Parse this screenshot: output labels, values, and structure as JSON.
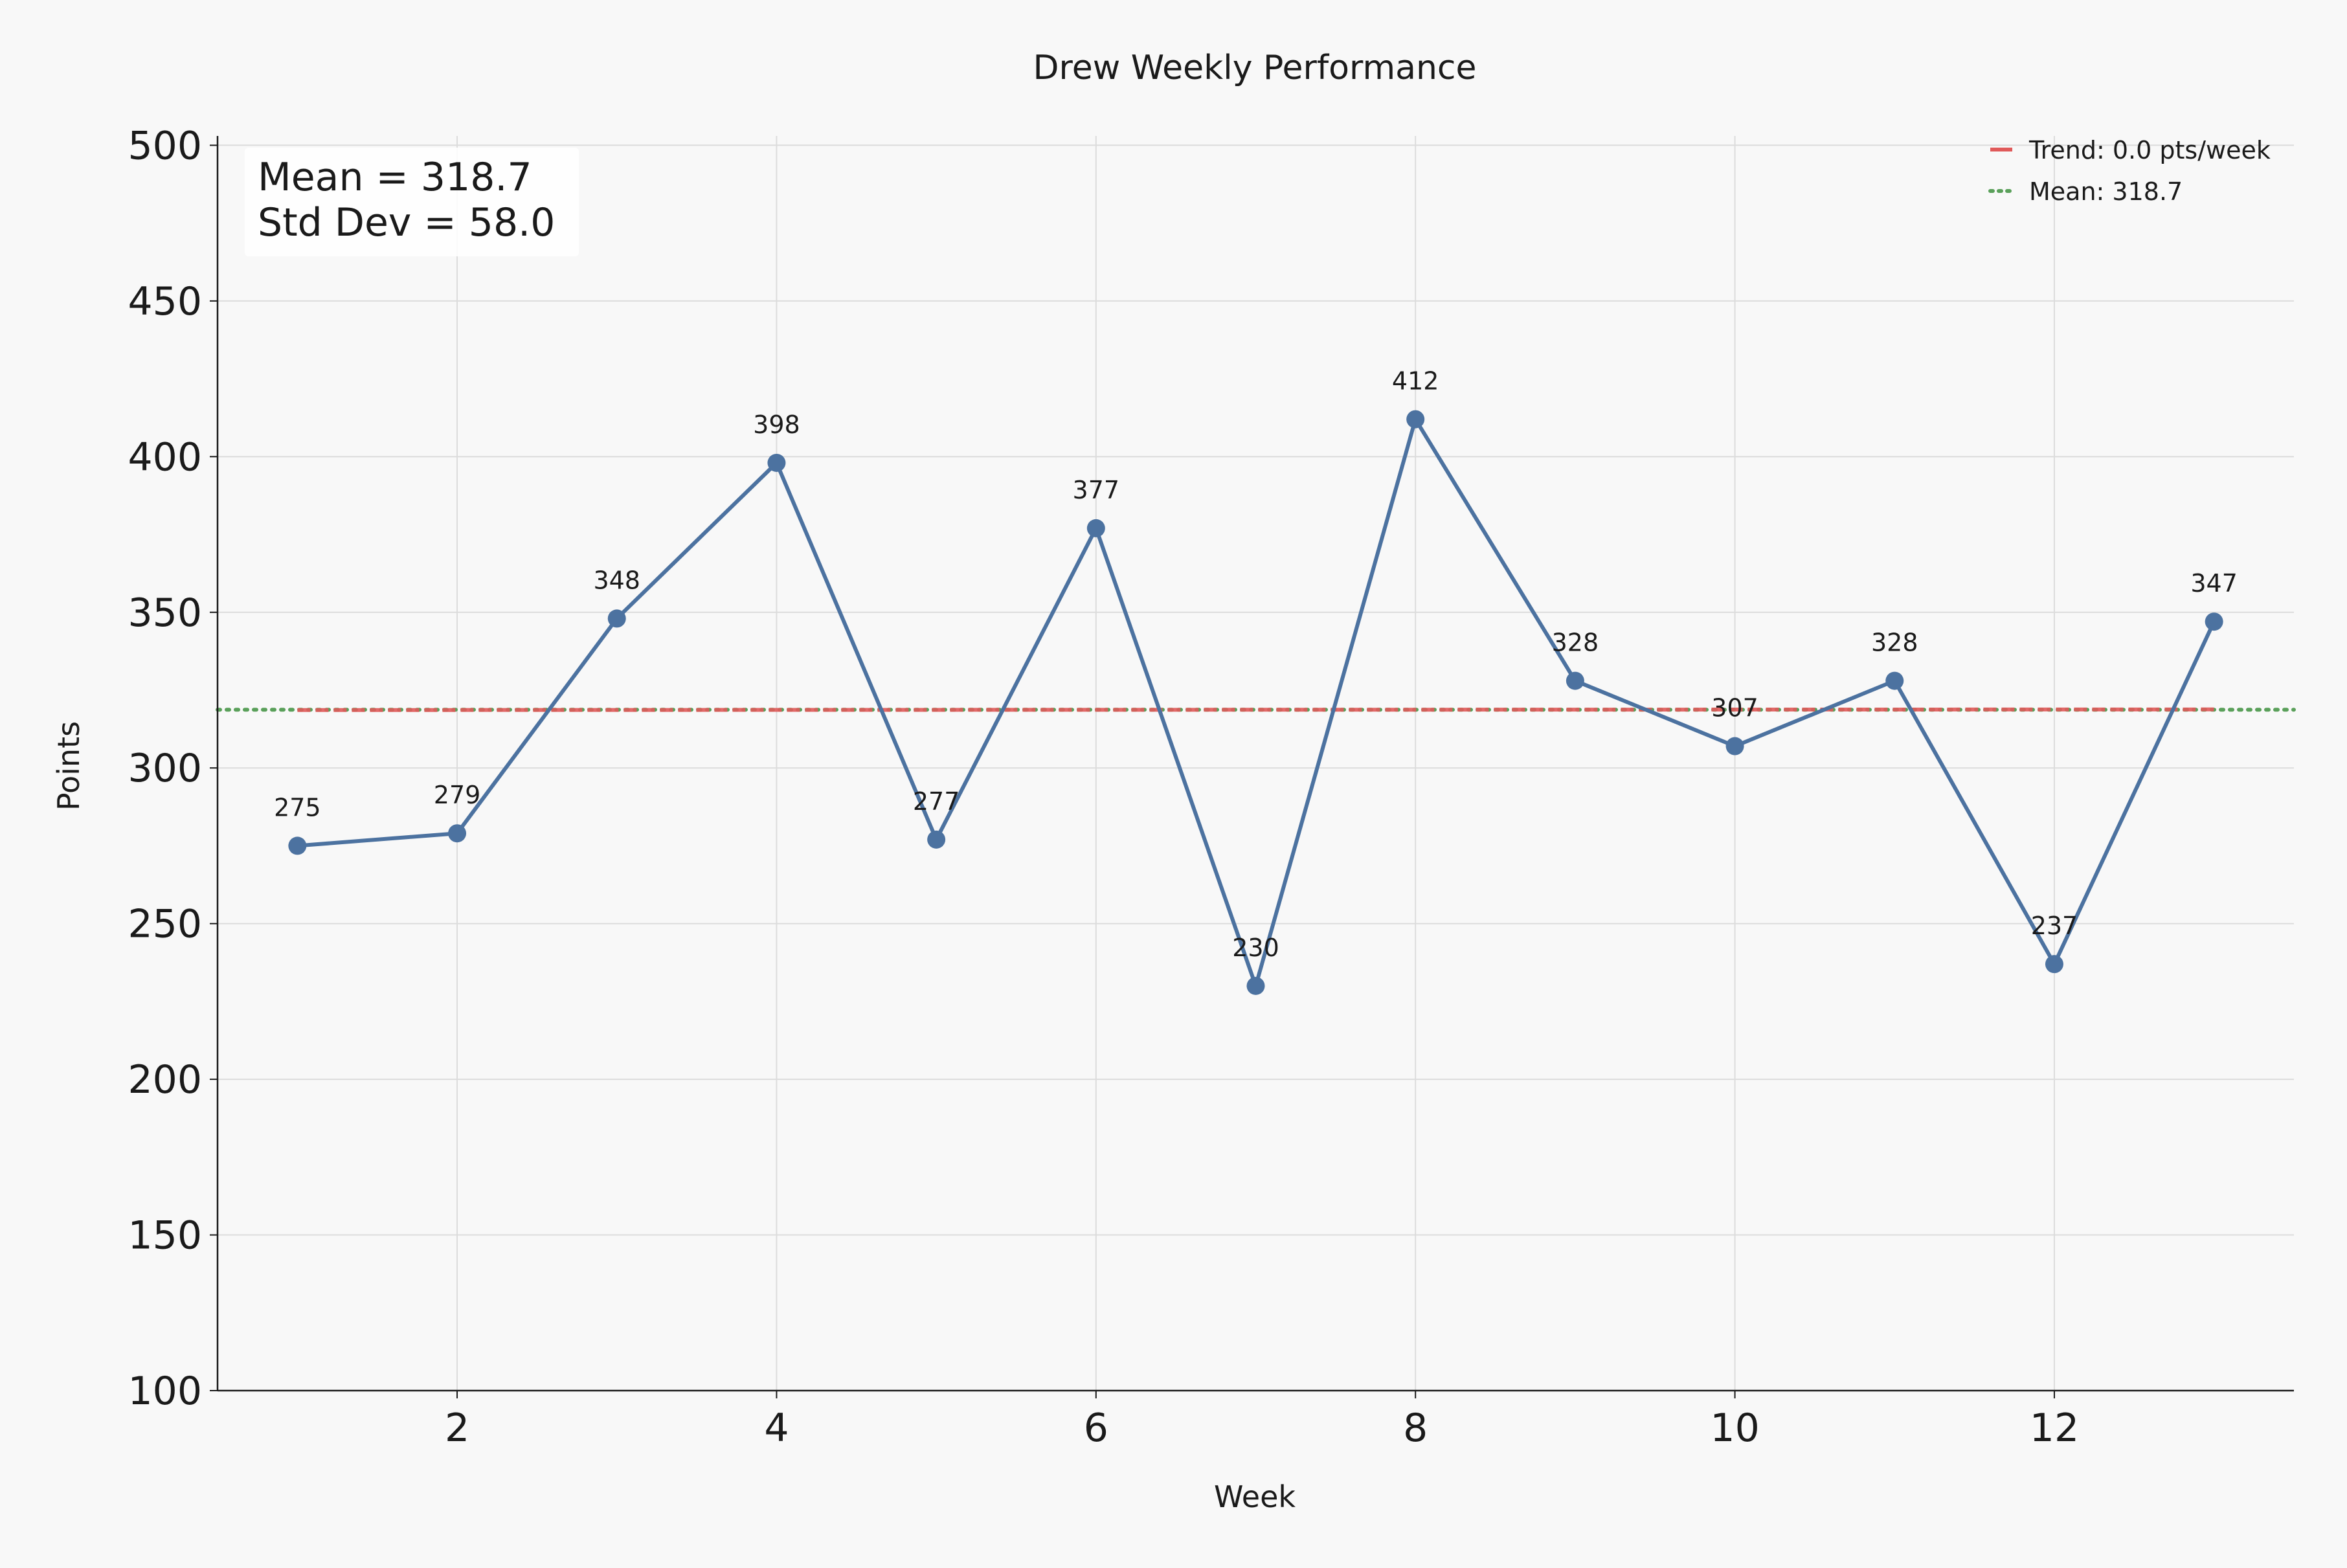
{
  "chart_data": {
    "type": "line",
    "title": "Drew Weekly Performance",
    "xlabel": "Week",
    "ylabel": "Points",
    "xlim": [
      0.5,
      13.5
    ],
    "ylim": [
      100,
      503
    ],
    "x_ticks": [
      2,
      4,
      6,
      8,
      10,
      12
    ],
    "y_ticks": [
      100,
      150,
      200,
      250,
      300,
      350,
      400,
      450,
      500
    ],
    "grid": true,
    "series": [
      {
        "name": "",
        "color": "#4c72a0",
        "x": [
          1,
          2,
          3,
          4,
          5,
          6,
          7,
          8,
          9,
          10,
          11,
          12,
          13
        ],
        "values": [
          275,
          279,
          348,
          398,
          277,
          377,
          230,
          412,
          328,
          307,
          328,
          237,
          347
        ],
        "data_labels": [
          "275",
          "279",
          "348",
          "398",
          "277",
          "377",
          "230",
          "412",
          "328",
          "307",
          "328",
          "237",
          "347"
        ]
      }
    ],
    "trend_line": {
      "label": "Trend: 0.0 pts/week",
      "color": "#e05a5a",
      "x": [
        1,
        13
      ],
      "y": [
        318.6,
        318.8
      ]
    },
    "mean_line": {
      "label": "Mean: 318.7",
      "color": "#5aa05a",
      "value": 318.7
    },
    "stats_box": {
      "line1": "Mean = 318.7",
      "line2": "Std Dev = 58.0"
    },
    "legend_position": "top-right"
  }
}
